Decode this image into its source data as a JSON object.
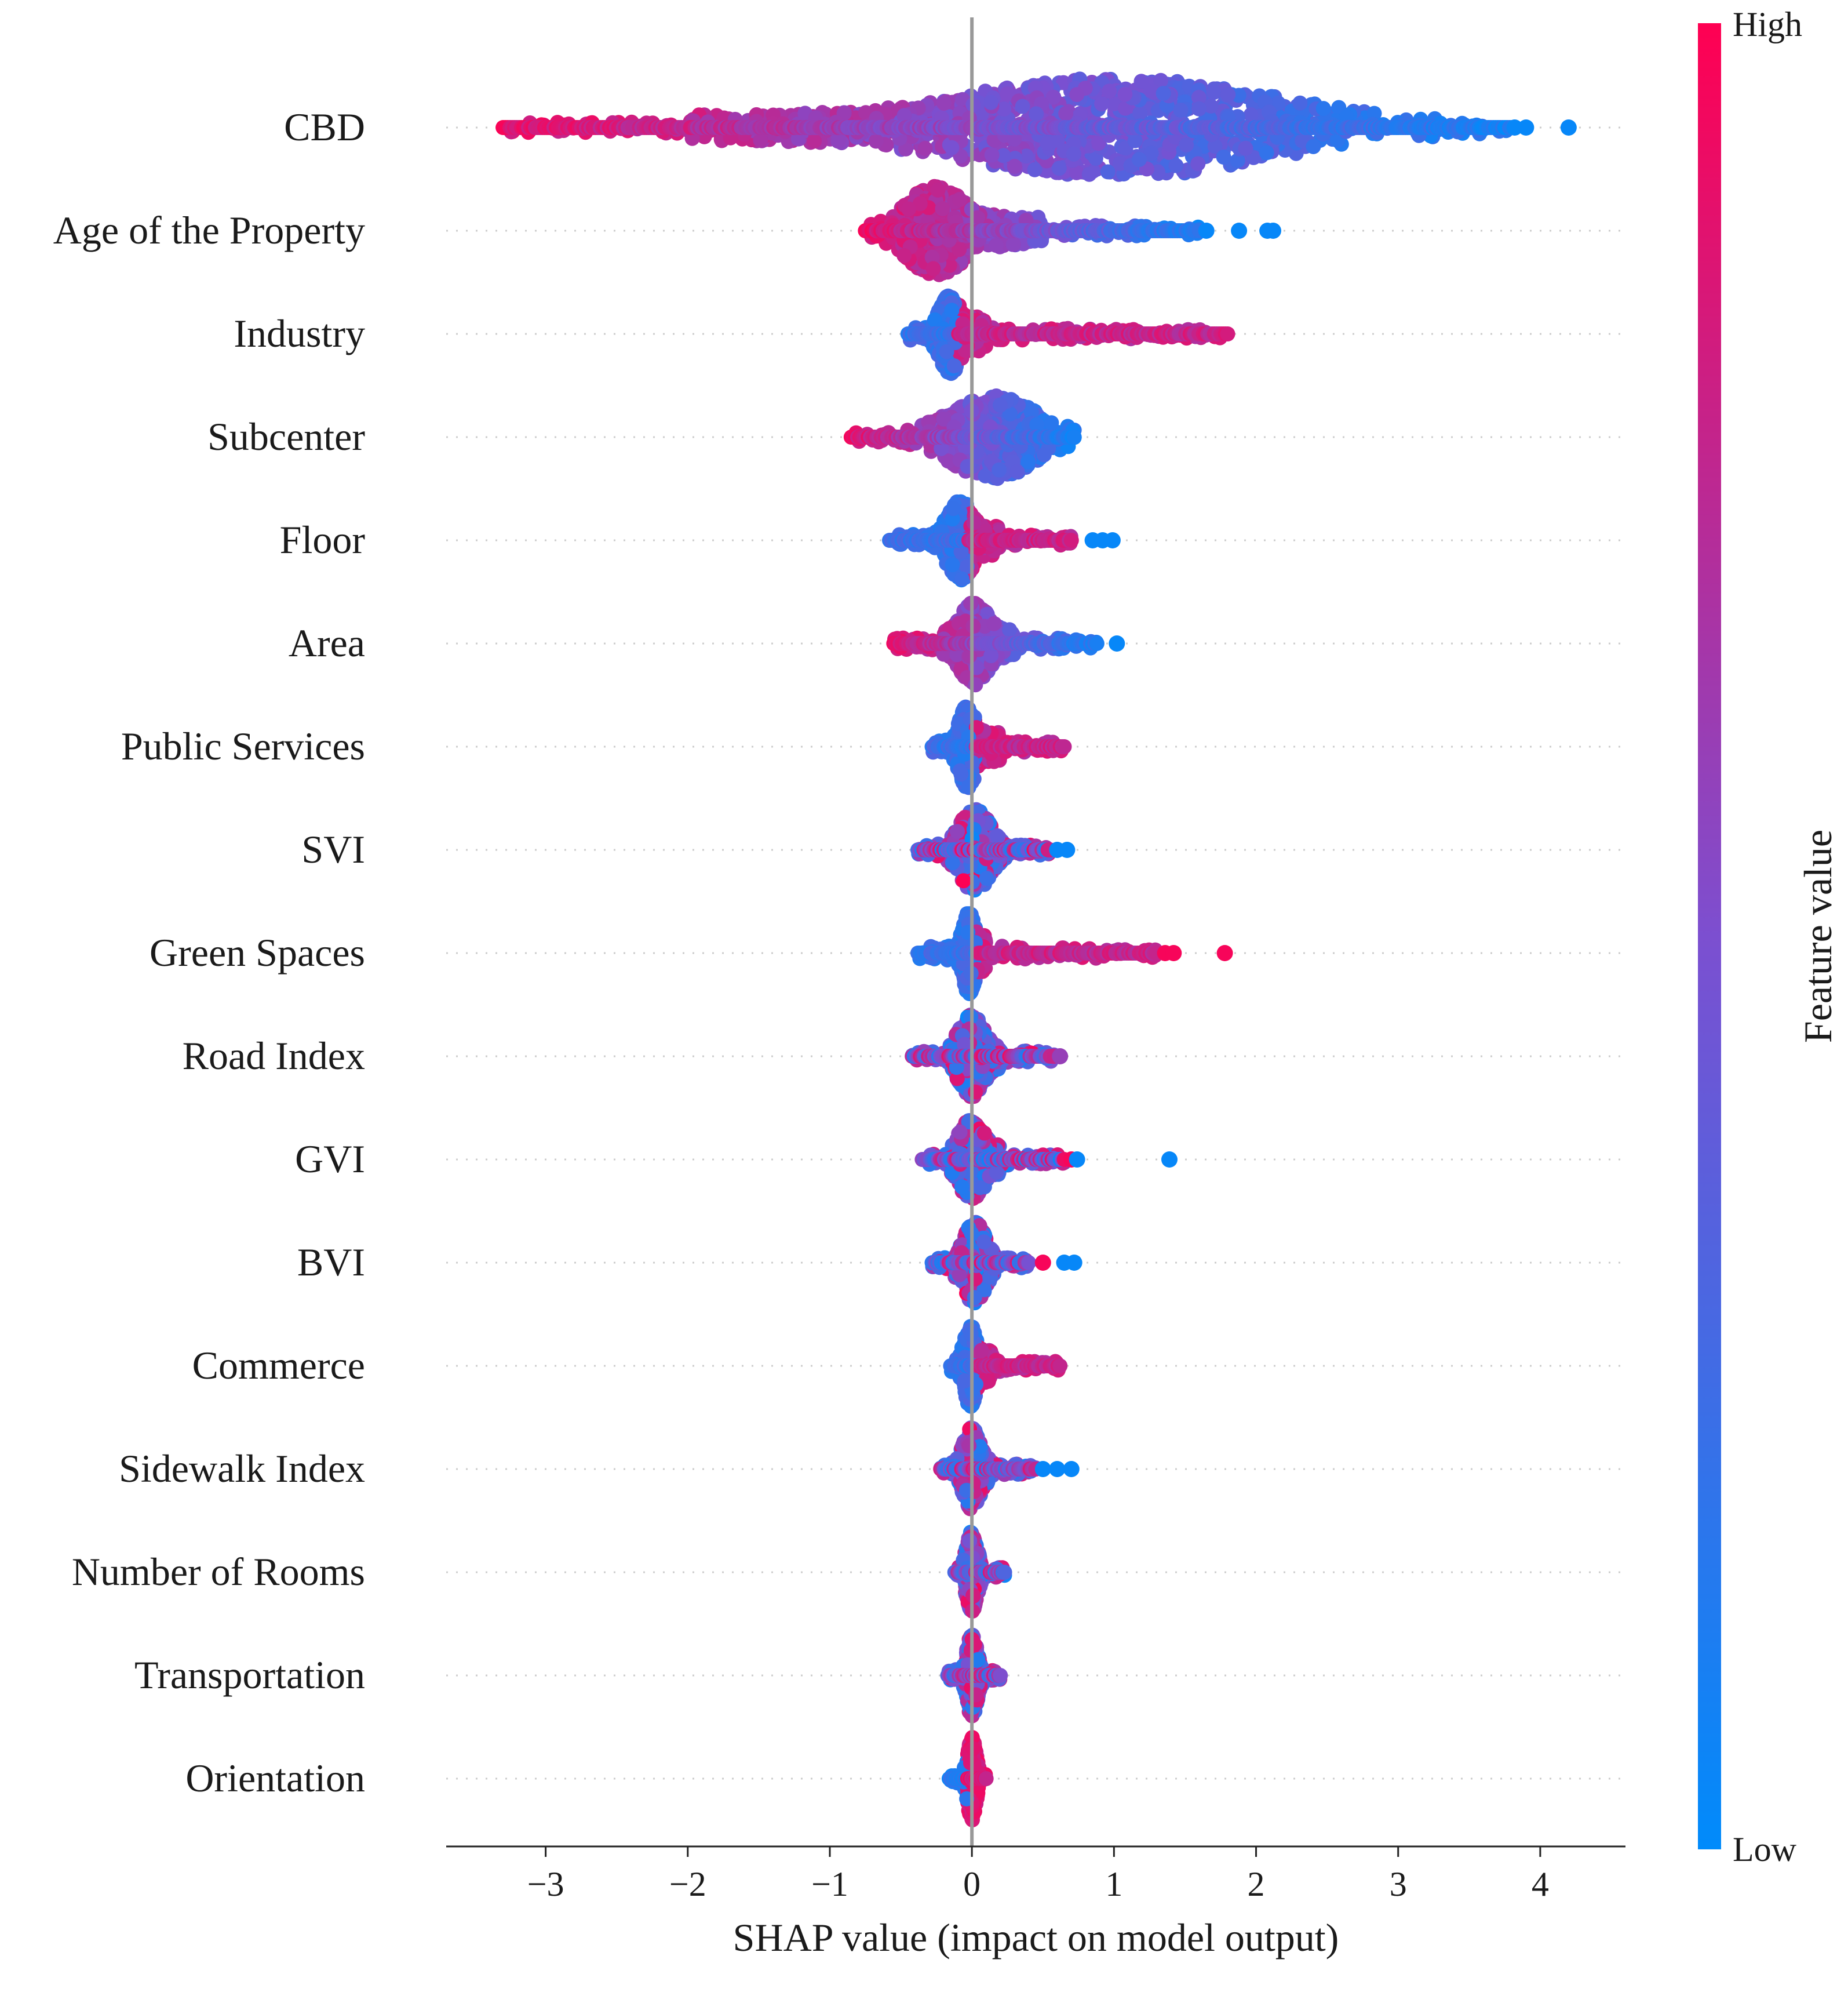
{
  "chart_data": {
    "type": "scatter",
    "subtype": "beeswarm",
    "title": "",
    "xlabel": "SHAP value (impact on model output)",
    "ylabel": "",
    "xlim": [
      -3.7,
      4.6
    ],
    "xticks": [
      -3,
      -2,
      -1,
      0,
      1,
      2,
      3,
      4
    ],
    "xtick_labels": [
      "−3",
      "−2",
      "−1",
      "0",
      "1",
      "2",
      "3",
      "4"
    ],
    "grid": false,
    "zero_line": 0,
    "colorbar": {
      "title": "Feature value",
      "high_label": "High",
      "low_label": "Low",
      "high_color": "#ff0052",
      "low_color": "#008bfb",
      "placement": "right"
    },
    "features": [
      {
        "name": "CBD",
        "min": -3.3,
        "max": 4.2,
        "core": [
          -3.3,
          3.8
        ],
        "core_low": -2.0,
        "core_high": 1.5,
        "peak": 1.0,
        "spread": 0.7,
        "maxwidth": 1.0,
        "color_trend": "high-left",
        "outliers": [
          {
            "x": 3.82,
            "c": "low"
          },
          {
            "x": 3.9,
            "c": "low"
          },
          {
            "x": 4.2,
            "c": "low"
          }
        ]
      },
      {
        "name": "Age of the Property",
        "min": -0.75,
        "max": 2.15,
        "core": [
          -0.75,
          1.6
        ],
        "core_low": -0.4,
        "core_high": 0.5,
        "peak": -0.25,
        "spread": 0.12,
        "maxwidth": 0.92,
        "color_trend": "high-left",
        "outliers": [
          {
            "x": 1.65,
            "c": "low"
          },
          {
            "x": 1.88,
            "c": "low"
          },
          {
            "x": 2.08,
            "c": "low"
          },
          {
            "x": 2.12,
            "c": "low"
          }
        ]
      },
      {
        "name": "Industry",
        "min": -0.45,
        "max": 1.85,
        "core": [
          -0.45,
          1.8
        ],
        "core_low": -0.25,
        "core_high": 0.1,
        "peak": -0.15,
        "spread": 0.04,
        "maxwidth": 0.78,
        "color_trend": "high-right",
        "outliers": []
      },
      {
        "name": "Subcenter",
        "min": -0.85,
        "max": 0.72,
        "core": [
          -0.85,
          0.72
        ],
        "core_low": -0.3,
        "core_high": 0.45,
        "peak": 0.15,
        "spread": 0.18,
        "maxwidth": 0.82,
        "color_trend": "high-left",
        "outliers": []
      },
      {
        "name": "Floor",
        "min": -0.58,
        "max": 1.0,
        "core": [
          -0.58,
          0.7
        ],
        "core_low": -0.15,
        "core_high": 0.2,
        "peak": -0.08,
        "spread": 0.05,
        "maxwidth": 0.8,
        "color_trend": "high-right",
        "outliers": [
          {
            "x": 0.85,
            "c": "low"
          },
          {
            "x": 0.92,
            "c": "low"
          },
          {
            "x": 0.99,
            "c": "low"
          }
        ]
      },
      {
        "name": "Area",
        "min": -0.55,
        "max": 1.02,
        "core": [
          -0.55,
          0.88
        ],
        "core_low": -0.2,
        "core_high": 0.3,
        "peak": 0.02,
        "spread": 0.06,
        "maxwidth": 0.82,
        "color_trend": "high-left",
        "outliers": [
          {
            "x": 1.02,
            "c": "low"
          }
        ]
      },
      {
        "name": "Public Services",
        "min": -0.28,
        "max": 0.65,
        "core": [
          -0.28,
          0.65
        ],
        "core_low": -0.1,
        "core_high": 0.2,
        "peak": -0.03,
        "spread": 0.03,
        "maxwidth": 0.82,
        "color_trend": "high-right",
        "outliers": []
      },
      {
        "name": "SVI",
        "min": -0.38,
        "max": 0.68,
        "core": [
          -0.38,
          0.55
        ],
        "core_low": -0.15,
        "core_high": 0.2,
        "peak": 0.02,
        "spread": 0.06,
        "maxwidth": 0.82,
        "color_trend": "mixed",
        "outliers": [
          {
            "x": 0.6,
            "c": "low"
          },
          {
            "x": 0.67,
            "c": "low"
          }
        ]
      },
      {
        "name": "Green Spaces",
        "min": -0.38,
        "max": 1.78,
        "core": [
          -0.38,
          1.3
        ],
        "core_low": -0.05,
        "core_high": 0.1,
        "peak": -0.02,
        "spread": 0.02,
        "maxwidth": 0.82,
        "color_trend": "high-right",
        "outliers": [
          {
            "x": 1.36,
            "c": "high"
          },
          {
            "x": 1.42,
            "c": "high"
          },
          {
            "x": 1.78,
            "c": "high"
          }
        ]
      },
      {
        "name": "Road Index",
        "min": -0.42,
        "max": 0.62,
        "core": [
          -0.42,
          0.58
        ],
        "core_low": -0.15,
        "core_high": 0.2,
        "peak": 0.0,
        "spread": 0.05,
        "maxwidth": 0.82,
        "color_trend": "mixed",
        "outliers": [
          {
            "x": 0.62,
            "c": "mid"
          }
        ]
      },
      {
        "name": "GVI",
        "min": -0.35,
        "max": 1.4,
        "core": [
          -0.35,
          0.65
        ],
        "core_low": -0.15,
        "core_high": 0.2,
        "peak": 0.0,
        "spread": 0.05,
        "maxwidth": 0.82,
        "color_trend": "mixed",
        "outliers": [
          {
            "x": 0.7,
            "c": "high"
          },
          {
            "x": 0.74,
            "c": "low"
          },
          {
            "x": 1.39,
            "c": "low"
          }
        ]
      },
      {
        "name": "BVI",
        "min": -0.28,
        "max": 0.72,
        "core": [
          -0.28,
          0.4
        ],
        "core_low": -0.12,
        "core_high": 0.15,
        "peak": 0.02,
        "spread": 0.04,
        "maxwidth": 0.82,
        "color_trend": "mixed",
        "outliers": [
          {
            "x": 0.5,
            "c": "high"
          },
          {
            "x": 0.65,
            "c": "low"
          },
          {
            "x": 0.72,
            "c": "low"
          }
        ]
      },
      {
        "name": "Commerce",
        "min": -0.15,
        "max": 0.62,
        "core": [
          -0.15,
          0.62
        ],
        "core_low": -0.05,
        "core_high": 0.15,
        "peak": -0.01,
        "spread": 0.02,
        "maxwidth": 0.82,
        "color_trend": "high-right",
        "outliers": []
      },
      {
        "name": "Sidewalk Index",
        "min": -0.22,
        "max": 0.7,
        "core": [
          -0.22,
          0.45
        ],
        "core_low": -0.1,
        "core_high": 0.12,
        "peak": 0.0,
        "spread": 0.03,
        "maxwidth": 0.82,
        "color_trend": "mixed",
        "outliers": [
          {
            "x": 0.5,
            "c": "low"
          },
          {
            "x": 0.6,
            "c": "low"
          },
          {
            "x": 0.7,
            "c": "low"
          }
        ]
      },
      {
        "name": "Number of Rooms",
        "min": -0.12,
        "max": 0.23,
        "core": [
          -0.12,
          0.23
        ],
        "core_low": -0.04,
        "core_high": 0.05,
        "peak": 0.0,
        "spread": 0.015,
        "maxwidth": 0.82,
        "color_trend": "mixed",
        "outliers": []
      },
      {
        "name": "Transportation",
        "min": -0.17,
        "max": 0.2,
        "core": [
          -0.17,
          0.2
        ],
        "core_low": -0.04,
        "core_high": 0.05,
        "peak": 0.0,
        "spread": 0.015,
        "maxwidth": 0.82,
        "color_trend": "mixed",
        "outliers": []
      },
      {
        "name": "Orientation",
        "min": -0.16,
        "max": 0.1,
        "core": [
          -0.16,
          0.1
        ],
        "core_low": -0.03,
        "core_high": 0.03,
        "peak": 0.0,
        "spread": 0.01,
        "maxwidth": 0.82,
        "color_trend": "high-center",
        "outliers": []
      }
    ]
  }
}
